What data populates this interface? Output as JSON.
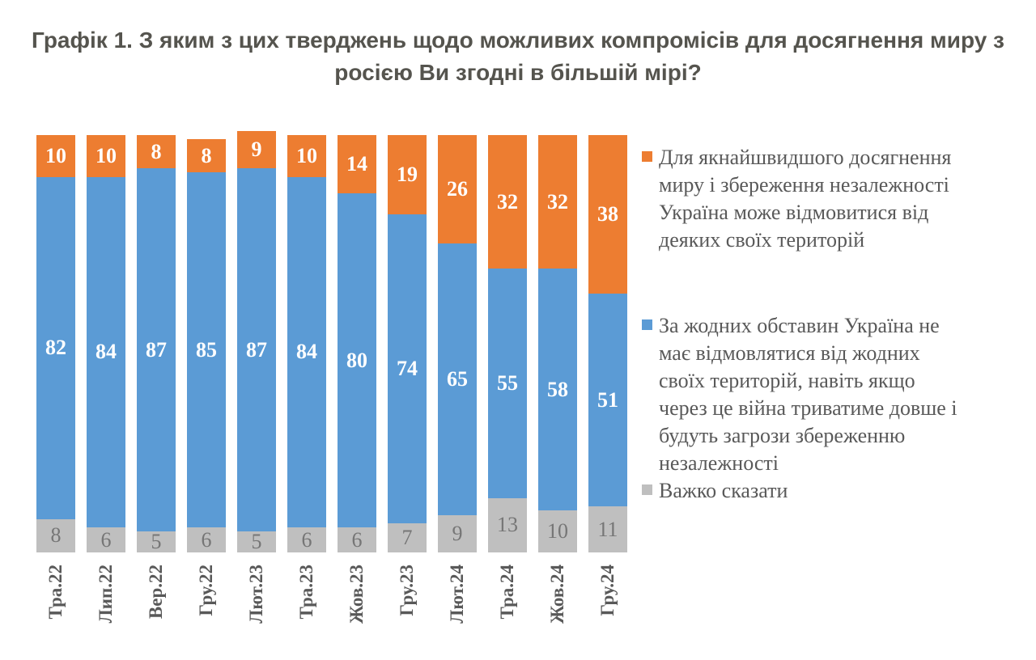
{
  "title": "Графік 1. З яким з цих тверджень щодо можливих компромісів для досягнення миру з\nросією Ви згодні в більшій мірі?",
  "title_color": "#55544E",
  "chart_data": {
    "type": "bar",
    "variant": "stacked-vertical-percent",
    "title": "Графік 1. З яким з цих тверджень щодо можливих компромісів для досягнення миру з росією Ви згодні в більшій мірі?",
    "categories": [
      "Тра.22",
      "Лип.22",
      "Вер.22",
      "Гру.22",
      "Лют.23",
      "Тра.23",
      "Жов.23",
      "Гру.23",
      "Лют.24",
      "Тра.24",
      "Жов.24",
      "Гру.24"
    ],
    "series": [
      {
        "name": "Для якнайшвидшого досягнення миру і збереження незалежності Україна може відмовитися від деяких своїх територій",
        "legend_lines": "Для якнайшвидшого досягнення\nмиру і збереження незалежності\nУкраїна може відмовитися від\nдеяких своїх територій",
        "color": "#ED7D31",
        "label_color": "#FFFFFF",
        "values": [
          10,
          10,
          8,
          8,
          9,
          10,
          14,
          19,
          26,
          32,
          32,
          38
        ]
      },
      {
        "name": "За жодних обставин Україна не має відмовлятися від жодних своїх територій, навіть якщо через це війна триватиме довше і будуть загрози збереженню незалежності",
        "legend_lines": "За жодних обставин Україна не\nмає відмовлятися від жодних\nсвоїх територій, навіть якщо\nчерез це війна триватиме довше і\nбудуть загрози збереженню\nнезалежності",
        "color": "#5B9BD5",
        "label_color": "#FFFFFF",
        "values": [
          82,
          84,
          87,
          85,
          87,
          84,
          80,
          74,
          65,
          55,
          58,
          51
        ]
      },
      {
        "name": "Важко сказати",
        "legend_lines": "Важко сказати",
        "color": "#BFBFBF",
        "label_color": "#767676",
        "values": [
          8,
          6,
          5,
          6,
          5,
          6,
          6,
          7,
          9,
          13,
          10,
          11
        ]
      }
    ],
    "stack_order_top_to_bottom": [
      "Для якнайшвидшого досягнення миру і збереження незалежності Україна може відмовитися від деяких своїх територій",
      "За жодних обставин Україна не має відмовлятися від жодних своїх територій, навіть якщо через це війна триватиме довше і будуть загрози збереженню незалежності",
      "Важко сказати"
    ],
    "ylim": [
      0,
      100
    ],
    "axes_visible": false,
    "gridlines": false,
    "data_labels": true,
    "legend_position": "right",
    "tick_label_color": "#595959",
    "tick_label_rotation_deg": 90
  }
}
